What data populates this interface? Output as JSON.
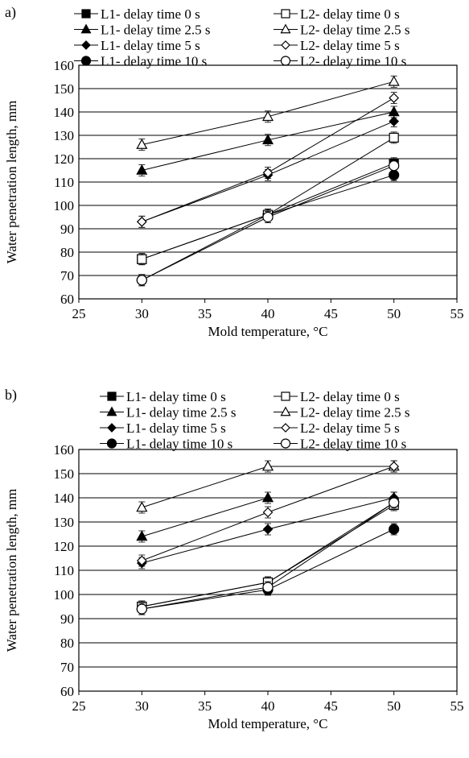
{
  "chart_data": [
    {
      "panel_label": "a)",
      "type": "line",
      "xlabel": "Mold temperature, °C",
      "ylabel": "Water penetration length, mm",
      "xlim": [
        25,
        55
      ],
      "ylim": [
        60,
        160
      ],
      "x_ticks": [
        "25",
        "30",
        "35",
        "40",
        "45",
        "50",
        "55"
      ],
      "y_ticks": [
        "60",
        "70",
        "80",
        "90",
        "100",
        "110",
        "120",
        "130",
        "140",
        "150",
        "160"
      ],
      "grid": "horizontal",
      "legend_position": "top",
      "x": [
        30,
        40,
        50
      ],
      "series": [
        {
          "name": "L1- delay time 0 s",
          "marker": "square",
          "filled": true,
          "values": [
            77,
            96,
            118
          ]
        },
        {
          "name": "L1- delay time 2.5 s",
          "marker": "triangle",
          "filled": true,
          "values": [
            115,
            128,
            140
          ]
        },
        {
          "name": "L1- delay time 5 s",
          "marker": "diamond",
          "filled": true,
          "values": [
            93,
            113,
            136
          ]
        },
        {
          "name": "L1- delay time 10 s",
          "marker": "circle",
          "filled": true,
          "values": [
            68,
            96,
            113
          ]
        },
        {
          "name": "L2- delay time 0 s",
          "marker": "square",
          "filled": false,
          "values": [
            77,
            96,
            129
          ]
        },
        {
          "name": "L2- delay time 2.5 s",
          "marker": "triangle",
          "filled": false,
          "values": [
            126,
            138,
            153
          ]
        },
        {
          "name": "L2- delay time 5 s",
          "marker": "diamond",
          "filled": false,
          "values": [
            93,
            114,
            146
          ]
        },
        {
          "name": "L2- delay time 10 s",
          "marker": "circle",
          "filled": false,
          "values": [
            68,
            95,
            117
          ]
        }
      ]
    },
    {
      "panel_label": "b)",
      "type": "line",
      "xlabel": "Mold temperature, °C",
      "ylabel": "Water penetration length, mm",
      "xlim": [
        25,
        55
      ],
      "ylim": [
        60,
        160
      ],
      "x_ticks": [
        "25",
        "30",
        "35",
        "40",
        "45",
        "50",
        "55"
      ],
      "y_ticks": [
        "60",
        "70",
        "80",
        "90",
        "100",
        "110",
        "120",
        "130",
        "140",
        "150",
        "160"
      ],
      "grid": "horizontal",
      "legend_position": "top",
      "x": [
        30,
        40,
        50
      ],
      "series": [
        {
          "name": "L1- delay time 0 s",
          "marker": "square",
          "filled": true,
          "values": [
            95,
            105,
            138
          ]
        },
        {
          "name": "L1- delay time 2.5 s",
          "marker": "triangle",
          "filled": true,
          "values": [
            124,
            140,
            140
          ]
        },
        {
          "name": "L1- delay time 5 s",
          "marker": "diamond",
          "filled": true,
          "values": [
            113,
            127,
            140
          ]
        },
        {
          "name": "L1- delay time 10 s",
          "marker": "circle",
          "filled": true,
          "values": [
            94,
            102,
            127
          ]
        },
        {
          "name": "L2- delay time 0 s",
          "marker": "square",
          "filled": false,
          "values": [
            95,
            105,
            137
          ]
        },
        {
          "name": "L2- delay time 2.5 s",
          "marker": "triangle",
          "filled": false,
          "values": [
            136,
            153,
            153
          ]
        },
        {
          "name": "L2- delay time 5 s",
          "marker": "diamond",
          "filled": false,
          "values": [
            114,
            134,
            153
          ]
        },
        {
          "name": "L2- delay time 10 s",
          "marker": "circle",
          "filled": false,
          "values": [
            94,
            103,
            138
          ]
        }
      ]
    }
  ]
}
